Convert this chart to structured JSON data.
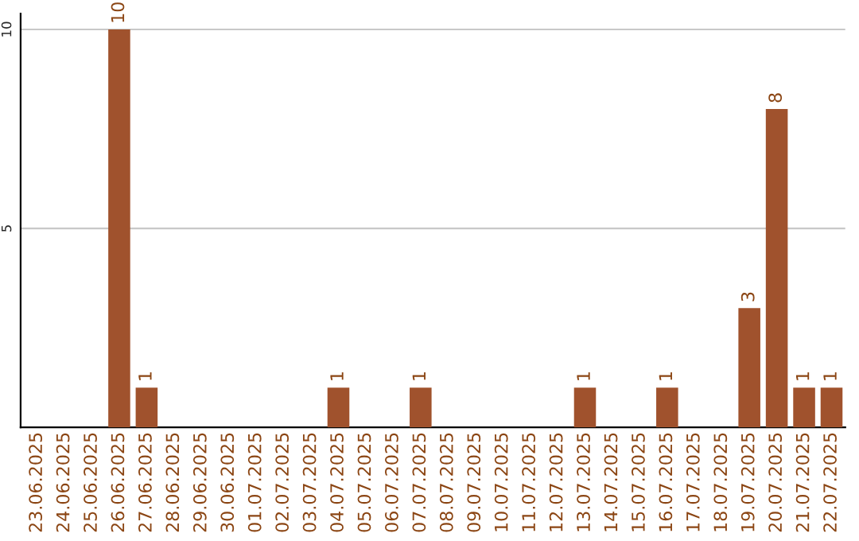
{
  "chart_data": {
    "type": "bar",
    "categories": [
      "23.06.2025",
      "24.06.2025",
      "25.06.2025",
      "26.06.2025",
      "27.06.2025",
      "28.06.2025",
      "29.06.2025",
      "30.06.2025",
      "01.07.2025",
      "02.07.2025",
      "03.07.2025",
      "04.07.2025",
      "05.07.2025",
      "06.07.2025",
      "07.07.2025",
      "08.07.2025",
      "09.07.2025",
      "10.07.2025",
      "11.07.2025",
      "12.07.2025",
      "13.07.2025",
      "14.07.2025",
      "15.07.2025",
      "16.07.2025",
      "17.07.2025",
      "18.07.2025",
      "19.07.2025",
      "20.07.2025",
      "21.07.2025",
      "22.07.2025"
    ],
    "values": [
      0,
      0,
      0,
      10,
      1,
      0,
      0,
      0,
      0,
      0,
      0,
      1,
      0,
      0,
      1,
      0,
      0,
      0,
      0,
      0,
      1,
      0,
      0,
      1,
      0,
      0,
      3,
      8,
      1,
      1
    ],
    "value_labels": [
      null,
      null,
      null,
      "10",
      "1",
      null,
      null,
      null,
      null,
      null,
      null,
      "1",
      null,
      null,
      "1",
      null,
      null,
      null,
      null,
      null,
      "1",
      null,
      null,
      "1",
      null,
      null,
      "3",
      "8",
      "1",
      "1"
    ],
    "color": "#a0522d",
    "ylim": [
      0,
      10.4
    ],
    "yticks": [
      5,
      10
    ],
    "grid": "y"
  }
}
